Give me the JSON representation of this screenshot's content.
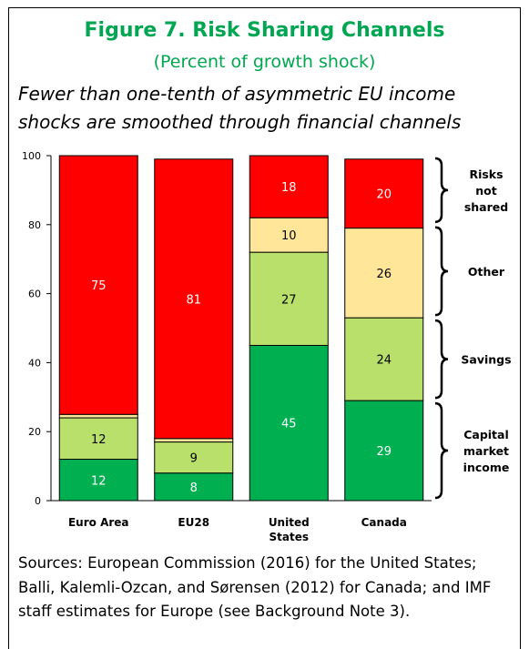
{
  "figure": {
    "title": "Figure 7. Risk Sharing Channels",
    "subtitle": "(Percent of growth shock)",
    "headline": "Fewer than one-tenth of asymmetric EU income shocks are smoothed through financial channels",
    "source": "Sources: European Commission (2016) for the United States; Balli, Kalemli-Ozcan, and Sørensen (2012) for Canada; and IMF staff estimates for Europe (see Background Note 3)."
  },
  "colors": {
    "capital": "#00b050",
    "savings": "#b8e06a",
    "other": "#ffe699",
    "not_shared": "#ff0000"
  },
  "chart_data": {
    "type": "bar",
    "stacked": true,
    "categories": [
      "Euro Area",
      "EU28",
      "United States",
      "Canada"
    ],
    "category_lines": [
      [
        "Euro Area"
      ],
      [
        "EU28"
      ],
      [
        "United",
        "States"
      ],
      [
        "Canada"
      ]
    ],
    "ylim": [
      0,
      100
    ],
    "yticks": [
      0,
      20,
      40,
      60,
      80,
      100
    ],
    "series": [
      {
        "key": "capital",
        "values": [
          12,
          8,
          45,
          29
        ],
        "labels": [
          "12",
          "8",
          "45",
          "29"
        ],
        "label_color": "#ffffff"
      },
      {
        "key": "savings",
        "values": [
          12,
          9,
          27,
          24
        ],
        "labels": [
          "12",
          "9",
          "27",
          "24"
        ],
        "label_color": "#000000"
      },
      {
        "key": "other",
        "values": [
          1,
          1,
          10,
          26
        ],
        "labels": [
          "",
          "",
          "10",
          "26"
        ],
        "label_color": "#000000"
      },
      {
        "key": "not_shared",
        "values": [
          75,
          81,
          18,
          20
        ],
        "labels": [
          "75",
          "81",
          "18",
          "20"
        ],
        "label_color": "#ffffff"
      }
    ],
    "brackets": [
      {
        "from": 80,
        "to": 100,
        "lines": [
          "Risks",
          "not",
          "shared"
        ]
      },
      {
        "from": 53,
        "to": 80,
        "lines": [
          "Other"
        ]
      },
      {
        "from": 29,
        "to": 53,
        "lines": [
          "Savings"
        ]
      },
      {
        "from": 0,
        "to": 29,
        "lines": [
          "Capital",
          "market",
          "income"
        ]
      }
    ]
  }
}
